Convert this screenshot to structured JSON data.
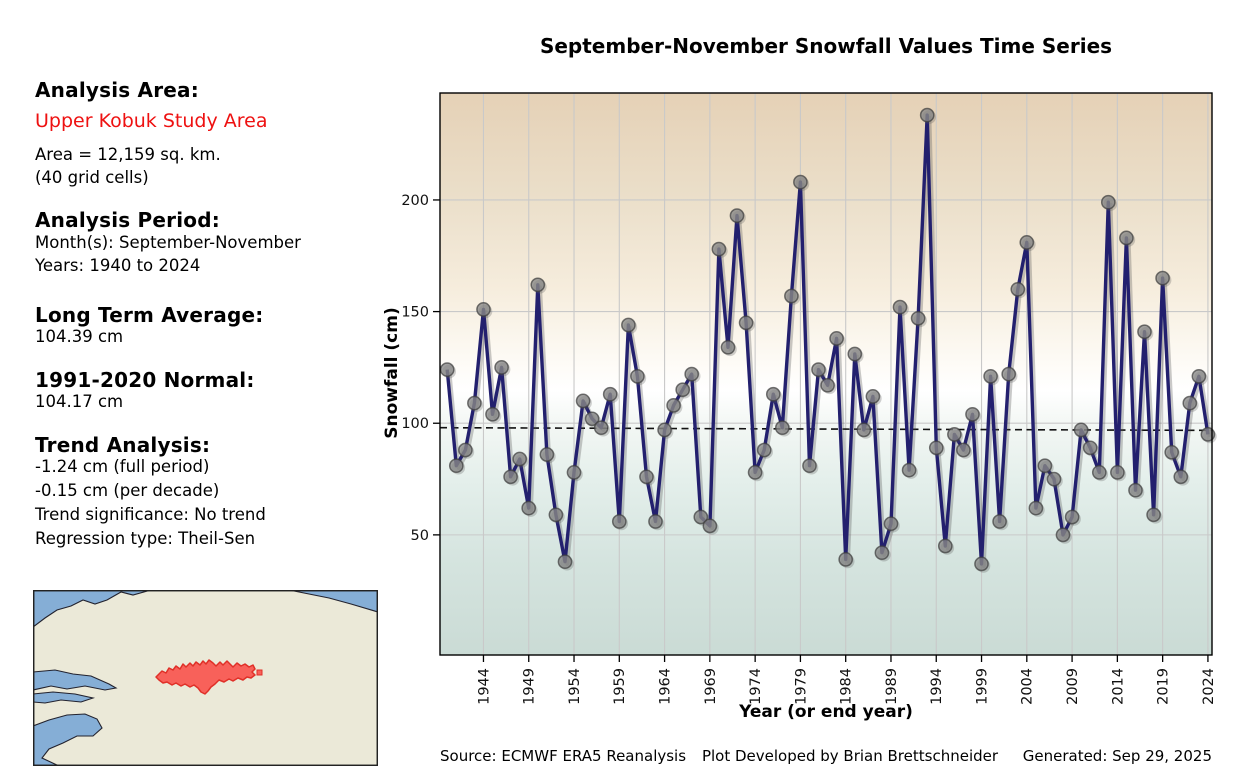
{
  "left_panel": {
    "analysis_area_heading": "Analysis Area:",
    "analysis_area_name": "Upper Kobuk Study Area",
    "area_line1": "Area = 12,159 sq. km.",
    "area_line2": "(40 grid cells)",
    "period_heading": "Analysis Period:",
    "period_months": "Month(s): September-November",
    "period_years": "Years: 1940 to 2024",
    "long_term_avg_heading": "Long Term Average:",
    "long_term_avg_value": "104.39 cm",
    "normal_heading": "1991-2020 Normal:",
    "normal_value": "104.17 cm",
    "trend_heading": "Trend Analysis:",
    "trend_full_period": "-1.24 cm (full period)",
    "trend_per_decade": "-0.15 cm (per decade)",
    "trend_significance": "Trend significance: No trend",
    "trend_regression": "Regression type: Theil-Sen"
  },
  "footer": {
    "source": "Source: ECMWF ERA5 Reanalysis",
    "credit": "Plot Developed by Brian Brettschneider",
    "generated": "Generated: Sep 29, 2025"
  },
  "map": {
    "land_color": "#ebe9d8",
    "water_color": "#85aed6",
    "coast_color": "#22222e",
    "study_area_fill": "#f8615a",
    "study_area_edge": "#e03028",
    "border_color": "#222222"
  },
  "chart_data": {
    "type": "line",
    "title": "September-November Snowfall Values Time Series",
    "xlabel": "Year (or end year)",
    "ylabel": "Snowfall (cm)",
    "start_year": 1940,
    "end_year": 2024,
    "values": [
      124,
      81,
      88,
      109,
      151,
      104,
      125,
      76,
      84,
      62,
      162,
      86,
      59,
      38,
      78,
      110,
      102,
      98,
      113,
      56,
      144,
      121,
      76,
      56,
      97,
      108,
      115,
      122,
      58,
      54,
      178,
      134,
      193,
      145,
      78,
      88,
      113,
      98,
      157,
      208,
      81,
      124,
      117,
      138,
      39,
      131,
      97,
      112,
      42,
      55,
      152,
      79,
      147,
      238,
      89,
      45,
      95,
      88,
      104,
      37,
      121,
      56,
      122,
      160,
      181,
      62,
      81,
      75,
      50,
      58,
      97,
      89,
      78,
      199,
      78,
      183,
      70,
      141,
      59,
      165,
      87,
      76,
      109,
      121,
      95
    ],
    "xticks": [
      1944,
      1949,
      1954,
      1959,
      1964,
      1969,
      1974,
      1979,
      1984,
      1989,
      1994,
      1999,
      2004,
      2009,
      2014,
      2019,
      2024
    ],
    "yticks": [
      50,
      100,
      150,
      200
    ],
    "xlim": [
      1939.2,
      2024.45
    ],
    "ylim": [
      -3.8,
      247.9
    ],
    "trend_line": {
      "style": "dashed",
      "start_value": 98.0,
      "end_value": 96.8
    },
    "grid": true,
    "legend": "none",
    "colors": {
      "line": "#23206e",
      "marker_fill": "#878787",
      "marker_edge": "#3c3c3c",
      "grid": "#c9c9c9",
      "trend": "#111111",
      "spine": "#000000",
      "tick_text": "#111111",
      "gradient_stops": [
        [
          0.0,
          "#e5d1b6"
        ],
        [
          0.19,
          "#ebdfca"
        ],
        [
          0.35,
          "#f6eddd"
        ],
        [
          0.47,
          "#fdfaf4"
        ],
        [
          0.53,
          "#ffffff"
        ],
        [
          0.59,
          "#f3f7f4"
        ],
        [
          0.69,
          "#e4efeb"
        ],
        [
          0.83,
          "#d5e4df"
        ],
        [
          1.0,
          "#cadbd5"
        ]
      ]
    }
  }
}
